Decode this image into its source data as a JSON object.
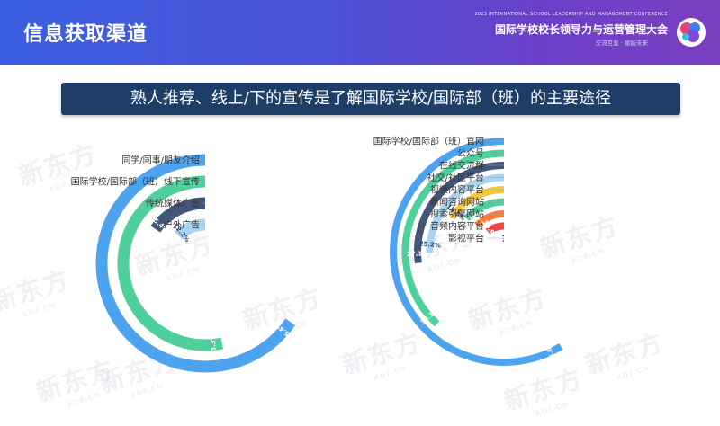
{
  "header": {
    "title": "信息获取渠道",
    "conference_subtitle": "2023 INTERNATIONAL SCHOOL LEADERSHIP AND MANAGEMENT CONFERENCE",
    "conference_name": "国际学校校长领导力与运营管理大会",
    "conference_tagline": "交流互鉴 · 赋能未来"
  },
  "subtitle": "熟人推荐、线上/下的宣传是了解国际学校/国际部（班）的主要途径",
  "watermark": {
    "text": "新东方",
    "sub": "XDF.CN"
  },
  "colors": {
    "blue_light": "#a9d4f1",
    "blue_navy": "#44557a",
    "green": "#4ecf9c",
    "blue": "#4ea3ee",
    "yellow": "#f6c83a",
    "orange": "#f57e3b",
    "red": "#ee4545",
    "purple": "#4d56cf"
  },
  "chart_data": [
    {
      "type": "radial-bar",
      "categories": [
        "同学/同事/朋友介绍",
        "国际学校/国际部（班）线下宣传",
        "传统媒体广告",
        "户外广告"
      ],
      "values": [
        65.4,
        53.3,
        15.4,
        12.2
      ],
      "value_labels": [
        "65.4%",
        "53.3%",
        "15.4%",
        "12.2%"
      ],
      "colors": [
        "#4ea3ee",
        "#4ecf9c",
        "#44557a",
        "#a9d4f1"
      ],
      "max": 100
    },
    {
      "type": "radial-bar",
      "categories": [
        "国际学校/国际部（班）官网",
        "公众号",
        "在线交流群",
        "社交/社区平台",
        "视频内容平台",
        "新闻咨询网站",
        "搜索引擎网站",
        "音频内容平台",
        "影视平台"
      ],
      "values": [
        58.6,
        38.1,
        27.1,
        25.2,
        15.8,
        13.5,
        12.7,
        10.8,
        1.6
      ],
      "value_labels": [
        "58.6%",
        "38.1%",
        "27.1%",
        "25.2%",
        "15.8%",
        "13.5%",
        "12.7%",
        "10.8%",
        "1.6%"
      ],
      "colors": [
        "#4ea3ee",
        "#4ecf9c",
        "#44557a",
        "#a9d4f1",
        "#f6c83a",
        "#4ecf9c",
        "#f57e3b",
        "#ee4545",
        "#4d56cf"
      ],
      "max": 100
    }
  ]
}
